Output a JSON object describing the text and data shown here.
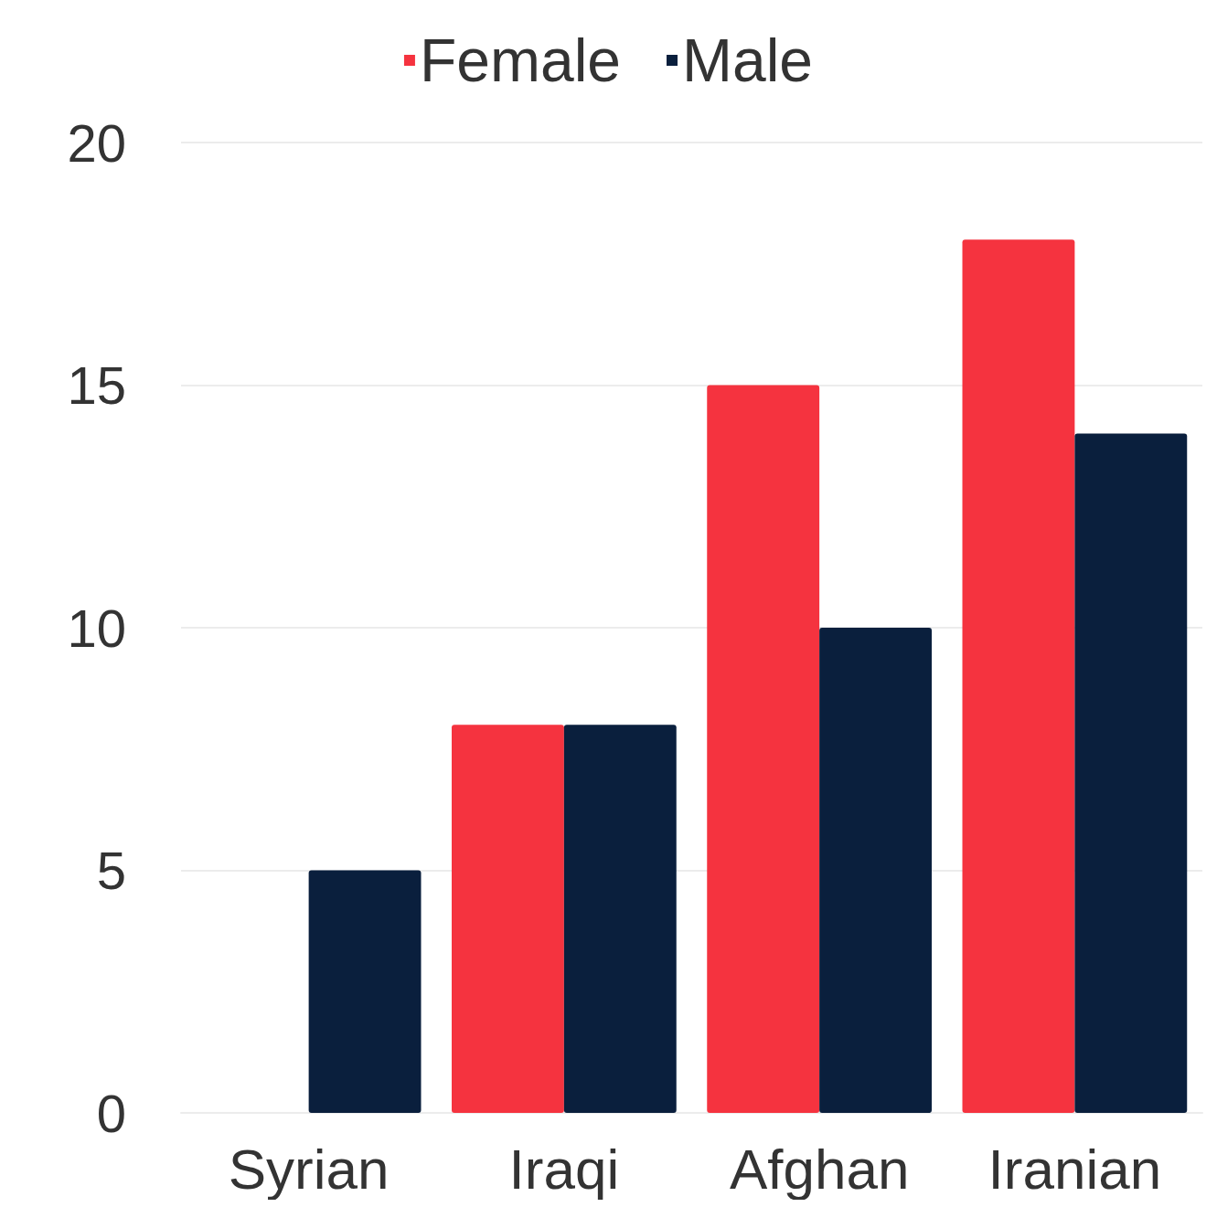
{
  "chart_data": {
    "type": "bar",
    "categories": [
      "Syrian",
      "Iraqi",
      "Afghan",
      "Iranian"
    ],
    "series": [
      {
        "name": "Female",
        "color": "#f5333f",
        "values": [
          0,
          8,
          15,
          18
        ]
      },
      {
        "name": "Male",
        "color": "#0a1f3d",
        "values": [
          5,
          8,
          10,
          14
        ]
      }
    ],
    "ylim": [
      0,
      20
    ],
    "yticks": [
      0,
      5,
      10,
      15,
      20
    ],
    "grid": "y",
    "legend": "top"
  }
}
